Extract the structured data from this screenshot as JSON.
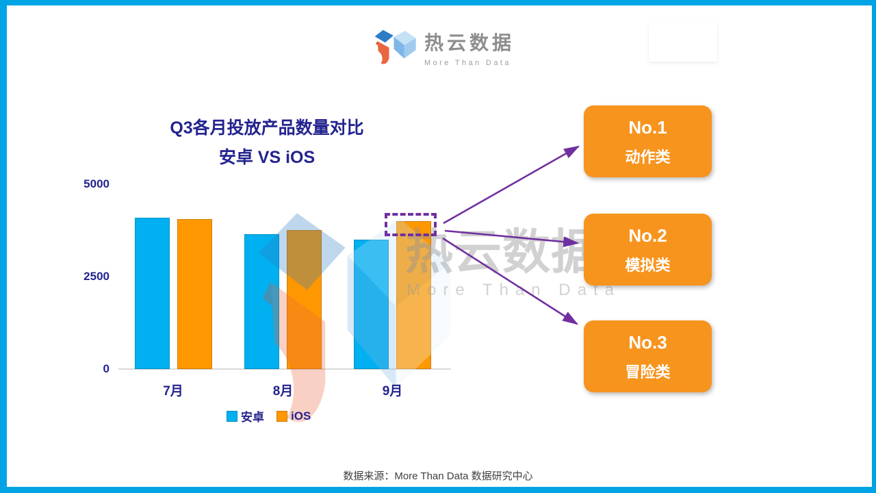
{
  "page": {
    "border_color": "#00A4E4",
    "background": "#FFFFFF"
  },
  "header": {
    "brand_name": "热云数据",
    "brand_tagline": "More Than Data"
  },
  "chart": {
    "title_line1": "Q3各月投放产品数量对比",
    "title_line2": "安卓 VS iOS",
    "title_color": "#23238F"
  },
  "chart_data": {
    "type": "bar",
    "title": "Q3各月投放产品数量对比 安卓 VS iOS",
    "categories": [
      "7月",
      "8月",
      "9月"
    ],
    "series": [
      {
        "name": "安卓",
        "color": "#00B0F0",
        "values": [
          4100,
          3650,
          3500
        ]
      },
      {
        "name": "iOS",
        "color": "#FF9800",
        "values": [
          4050,
          3760,
          4000
        ]
      }
    ],
    "xlabel": "",
    "ylabel": "",
    "yticks": [
      0,
      2500,
      5000
    ],
    "ylim": [
      0,
      5000
    ],
    "grid": false,
    "legend_position": "bottom",
    "tick_color": "#23238F",
    "annotation": "9月 iOS bar highlighted with dashed purple box linked by arrows to top-3 category cards"
  },
  "ranking": {
    "card_color": "#F7941E",
    "arrow_color": "#7030A0",
    "cards": [
      {
        "rank": "No.1",
        "label": "动作类"
      },
      {
        "rank": "No.2",
        "label": "模拟类"
      },
      {
        "rank": "No.3",
        "label": "冒险类"
      }
    ]
  },
  "watermark": {
    "text": "热云数据",
    "tagline": "More Than Data"
  },
  "footer": {
    "source_text": "数据来源：More Than Data 数据研究中心"
  }
}
